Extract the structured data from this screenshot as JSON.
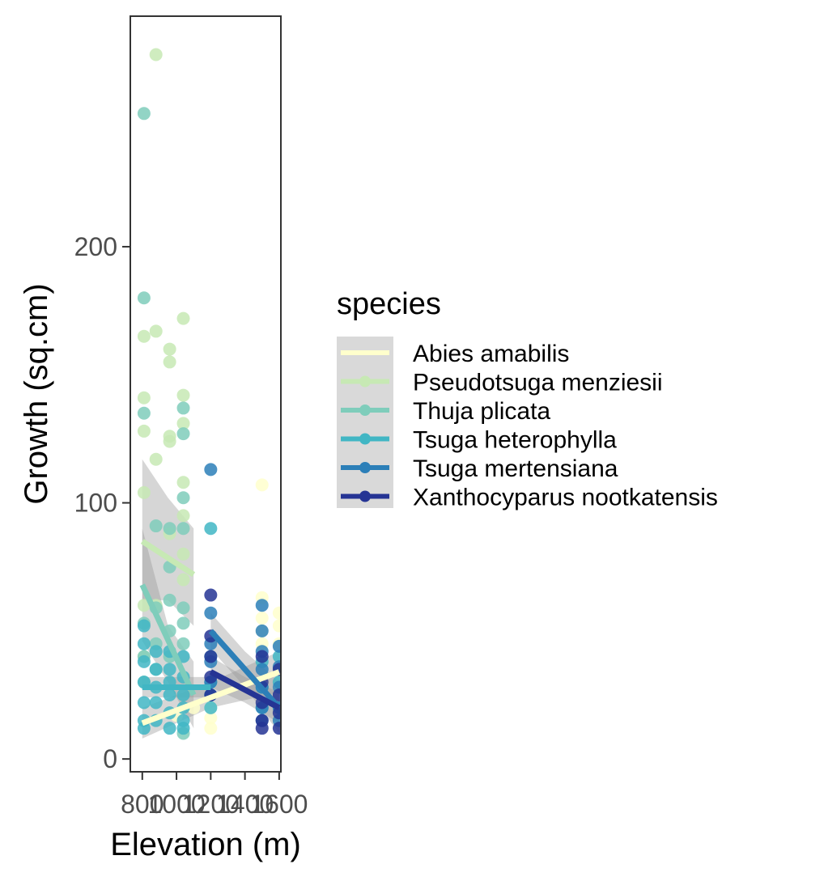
{
  "chart_data": {
    "type": "scatter",
    "xlabel": "Elevation (m)",
    "ylabel": "Growth (sq.cm)",
    "xlim": [
      730,
      1610
    ],
    "ylim": [
      -5,
      290
    ],
    "x_ticks": [
      800,
      1000,
      1200,
      1400,
      1600
    ],
    "x_tick_labels": [
      "800",
      "1000",
      "1200",
      "1400",
      "1600"
    ],
    "y_ticks": [
      0,
      100,
      200
    ],
    "y_tick_labels": [
      "0",
      "100",
      "200"
    ],
    "grid": false,
    "legend": {
      "title": "species",
      "position": "right"
    },
    "series": [
      {
        "name": "Abies amabilis",
        "color": "#ffffcc",
        "points": [
          [
            1200,
            12
          ],
          [
            1200,
            16
          ],
          [
            1200,
            20
          ],
          [
            1200,
            25
          ],
          [
            1500,
            107
          ],
          [
            1500,
            63
          ],
          [
            1500,
            55
          ],
          [
            1500,
            50
          ],
          [
            1500,
            45
          ],
          [
            1500,
            30
          ],
          [
            1500,
            22
          ],
          [
            1600,
            57
          ],
          [
            1600,
            52
          ],
          [
            1600,
            45
          ],
          [
            1600,
            35
          ],
          [
            1600,
            28
          ],
          [
            1600,
            20
          ],
          [
            1100,
            20
          ],
          [
            1000,
            17
          ]
        ],
        "trend": [
          [
            800,
            14
          ],
          [
            1600,
            34
          ]
        ],
        "band_upper": [
          [
            800,
            20
          ],
          [
            1200,
            30
          ],
          [
            1600,
            42
          ]
        ],
        "band_lower": [
          [
            800,
            8
          ],
          [
            1200,
            20
          ],
          [
            1600,
            26
          ]
        ]
      },
      {
        "name": "Pseudotsuga menziesii",
        "color": "#c7e9b4",
        "points": [
          [
            810,
            165
          ],
          [
            810,
            141
          ],
          [
            810,
            128
          ],
          [
            810,
            104
          ],
          [
            810,
            60
          ],
          [
            810,
            40
          ],
          [
            880,
            275
          ],
          [
            880,
            167
          ],
          [
            880,
            117
          ],
          [
            880,
            60
          ],
          [
            960,
            160
          ],
          [
            960,
            155
          ],
          [
            960,
            126
          ],
          [
            960,
            124
          ],
          [
            960,
            88
          ],
          [
            1040,
            172
          ],
          [
            1040,
            142
          ],
          [
            1040,
            131
          ],
          [
            1040,
            108
          ],
          [
            1040,
            95
          ],
          [
            1040,
            80
          ],
          [
            1040,
            70
          ]
        ],
        "trend": [
          [
            800,
            85
          ],
          [
            1100,
            72
          ]
        ],
        "band_upper": [
          [
            800,
            117
          ],
          [
            950,
            102
          ],
          [
            1100,
            90
          ]
        ],
        "band_lower": [
          [
            800,
            62
          ],
          [
            950,
            62
          ],
          [
            1100,
            52
          ]
        ]
      },
      {
        "name": "Thuja plicata",
        "color": "#7fcdbb",
        "points": [
          [
            810,
            252
          ],
          [
            810,
            180
          ],
          [
            810,
            135
          ],
          [
            810,
            53
          ],
          [
            810,
            40
          ],
          [
            810,
            30
          ],
          [
            880,
            91
          ],
          [
            880,
            59
          ],
          [
            880,
            45
          ],
          [
            880,
            35
          ],
          [
            960,
            90
          ],
          [
            960,
            75
          ],
          [
            960,
            62
          ],
          [
            960,
            50
          ],
          [
            960,
            40
          ],
          [
            1040,
            137
          ],
          [
            1040,
            127
          ],
          [
            1040,
            102
          ],
          [
            1040,
            90
          ],
          [
            1040,
            59
          ],
          [
            1040,
            53
          ],
          [
            1040,
            45
          ],
          [
            1040,
            10
          ]
        ],
        "trend": [
          [
            800,
            68
          ],
          [
            1100,
            25
          ]
        ],
        "band_upper": [
          [
            800,
            90
          ],
          [
            950,
            52
          ],
          [
            1100,
            38
          ]
        ],
        "band_lower": [
          [
            800,
            46
          ],
          [
            950,
            30
          ],
          [
            1100,
            12
          ]
        ]
      },
      {
        "name": "Tsuga heterophylla",
        "color": "#41b6c4",
        "points": [
          [
            810,
            52
          ],
          [
            810,
            45
          ],
          [
            810,
            38
          ],
          [
            810,
            30
          ],
          [
            810,
            22
          ],
          [
            810,
            15
          ],
          [
            810,
            12
          ],
          [
            880,
            42
          ],
          [
            880,
            35
          ],
          [
            880,
            28
          ],
          [
            880,
            22
          ],
          [
            880,
            15
          ],
          [
            960,
            42
          ],
          [
            960,
            35
          ],
          [
            960,
            30
          ],
          [
            960,
            25
          ],
          [
            960,
            18
          ],
          [
            960,
            12
          ],
          [
            1040,
            40
          ],
          [
            1040,
            32
          ],
          [
            1040,
            25
          ],
          [
            1040,
            20
          ],
          [
            1040,
            15
          ],
          [
            1040,
            12
          ],
          [
            1200,
            90
          ],
          [
            1200,
            40
          ],
          [
            1200,
            30
          ],
          [
            1200,
            25
          ],
          [
            1200,
            20
          ],
          [
            1500,
            38
          ],
          [
            1500,
            28
          ],
          [
            1500,
            20
          ],
          [
            1600,
            40
          ],
          [
            1600,
            30
          ],
          [
            1600,
            20
          ]
        ],
        "trend": [
          [
            800,
            28
          ],
          [
            1200,
            28
          ]
        ],
        "band_upper": [
          [
            800,
            32
          ],
          [
            1200,
            32
          ]
        ],
        "band_lower": [
          [
            800,
            24
          ],
          [
            1200,
            24
          ]
        ]
      },
      {
        "name": "Tsuga mertensiana",
        "color": "#2c7fb8",
        "points": [
          [
            1200,
            113
          ],
          [
            1200,
            57
          ],
          [
            1200,
            45
          ],
          [
            1200,
            38
          ],
          [
            1200,
            30
          ],
          [
            1200,
            25
          ],
          [
            1500,
            60
          ],
          [
            1500,
            50
          ],
          [
            1500,
            42
          ],
          [
            1500,
            35
          ],
          [
            1500,
            28
          ],
          [
            1500,
            20
          ],
          [
            1500,
            15
          ],
          [
            1600,
            44
          ],
          [
            1600,
            36
          ],
          [
            1600,
            28
          ],
          [
            1600,
            20
          ],
          [
            1600,
            15
          ]
        ],
        "trend": [
          [
            1200,
            50
          ],
          [
            1600,
            20
          ]
        ],
        "band_upper": [
          [
            1200,
            57
          ],
          [
            1400,
            42
          ],
          [
            1600,
            30
          ]
        ],
        "band_lower": [
          [
            1200,
            43
          ],
          [
            1400,
            28
          ],
          [
            1600,
            10
          ]
        ]
      },
      {
        "name": "Xanthocyparus nootkatensis",
        "color": "#253494",
        "points": [
          [
            1200,
            64
          ],
          [
            1200,
            48
          ],
          [
            1200,
            40
          ],
          [
            1200,
            32
          ],
          [
            1200,
            25
          ],
          [
            1500,
            40
          ],
          [
            1500,
            30
          ],
          [
            1500,
            22
          ],
          [
            1500,
            15
          ],
          [
            1500,
            12
          ],
          [
            1600,
            35
          ],
          [
            1600,
            25
          ],
          [
            1600,
            18
          ],
          [
            1600,
            12
          ]
        ],
        "trend": [
          [
            1200,
            34
          ],
          [
            1600,
            20
          ]
        ],
        "band_upper": [
          [
            1200,
            40
          ],
          [
            1400,
            32
          ],
          [
            1600,
            26
          ]
        ],
        "band_lower": [
          [
            1200,
            28
          ],
          [
            1400,
            22
          ],
          [
            1600,
            14
          ]
        ]
      }
    ]
  }
}
